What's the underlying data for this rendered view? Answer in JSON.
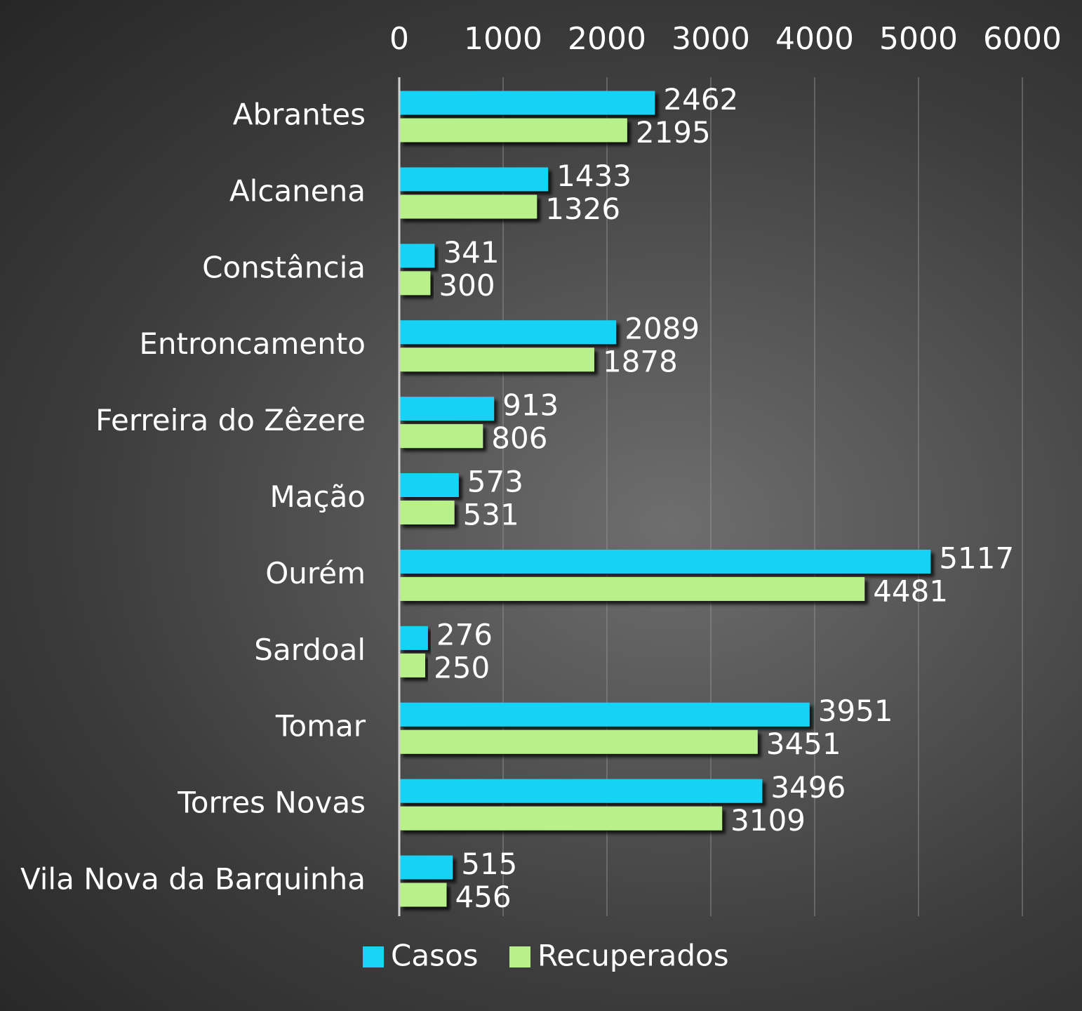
{
  "chart_data": {
    "type": "bar",
    "orientation": "horizontal",
    "title": "",
    "xlabel": "",
    "ylabel": "",
    "xlim": [
      0,
      6000
    ],
    "x_ticks": [
      "0",
      "1000",
      "2000",
      "3000",
      "4000",
      "5000",
      "6000"
    ],
    "x_axis_position": "top",
    "grid": true,
    "legend_position": "bottom",
    "categories": [
      "Abrantes",
      "Alcanena",
      "Constância",
      "Entroncamento",
      "Ferreira do Zêzere",
      "Mação",
      "Ourém",
      "Sardoal",
      "Tomar",
      "Torres Novas",
      "Vila Nova da Barquinha"
    ],
    "series": [
      {
        "name": "Casos",
        "color": "#19d3f5",
        "values": [
          2462,
          1433,
          341,
          2089,
          913,
          573,
          5117,
          276,
          3951,
          3496,
          515
        ]
      },
      {
        "name": "Recuperados",
        "color": "#b8f08a",
        "values": [
          2195,
          1326,
          300,
          1878,
          806,
          531,
          4481,
          250,
          3451,
          3109,
          456
        ]
      }
    ]
  }
}
